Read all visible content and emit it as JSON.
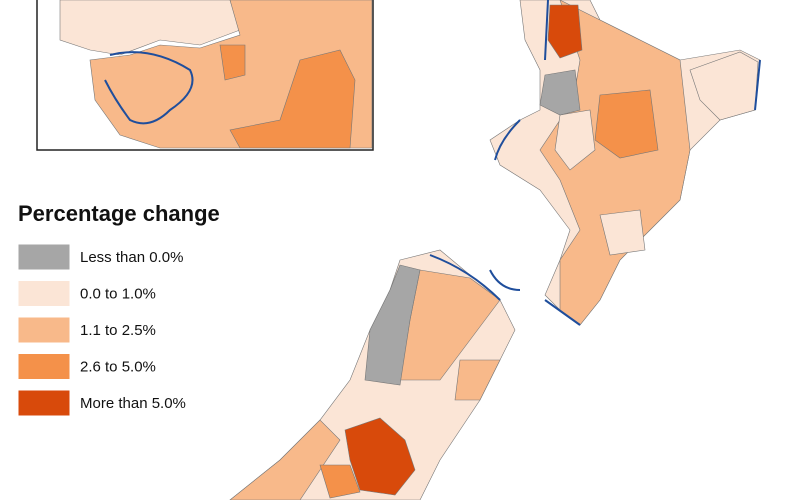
{
  "legend": {
    "title": "Percentage change",
    "items": [
      {
        "label": "Less than 0.0%",
        "color": "#a6a6a6"
      },
      {
        "label": "0.0 to 1.0%",
        "color": "#fbe5d6"
      },
      {
        "label": "1.1 to 2.5%",
        "color": "#f8b98a"
      },
      {
        "label": "2.6 to 5.0%",
        "color": "#f4914a"
      },
      {
        "label": "More than 5.0%",
        "color": "#d84a0b"
      }
    ]
  }
}
